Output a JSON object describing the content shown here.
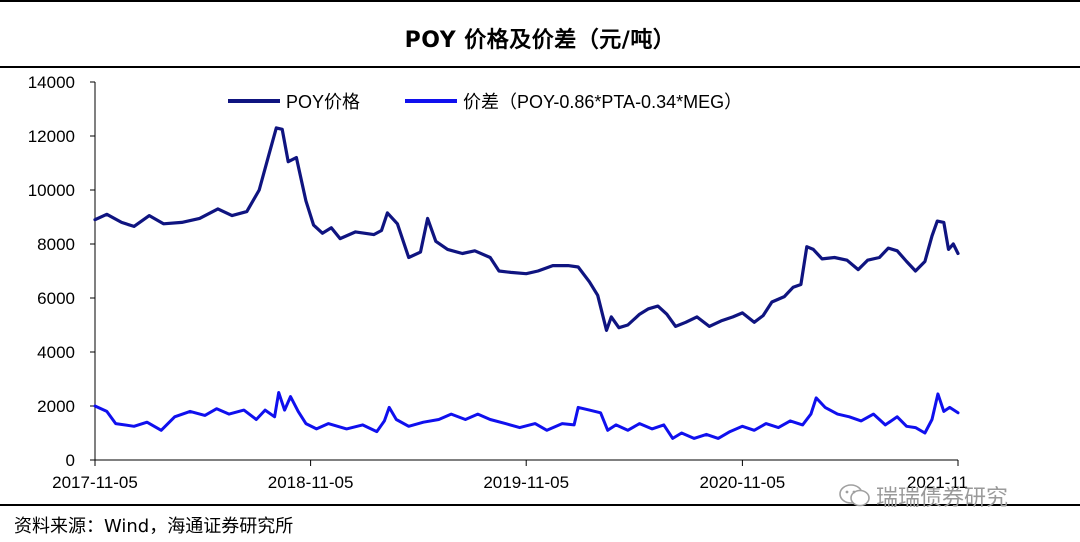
{
  "title": "POY 价格及价差（元/吨）",
  "source": "资料来源：Wind，海通证券研究所",
  "watermark": "瑞瑞债券研究",
  "colors": {
    "poy": "#0f1480",
    "spread": "#1010ee",
    "axis": "#000000"
  },
  "chart_data": {
    "type": "line",
    "title": "POY 价格及价差（元/吨）",
    "xlabel": "",
    "ylabel": "",
    "ylim": [
      0,
      14000
    ],
    "yticks": [
      0,
      2000,
      4000,
      6000,
      8000,
      10000,
      12000,
      14000
    ],
    "ytick_labels": [
      "0",
      "2000",
      "4000",
      "6000",
      "8000",
      "10000",
      "12000",
      "14000"
    ],
    "xlim": [
      "2017-11-05",
      "2021-11-05"
    ],
    "xticks": [
      "2017-11-05",
      "2018-11-05",
      "2019-11-05",
      "2020-11-05",
      "2021-11-05"
    ],
    "xtick_labels": [
      "2017-11-05",
      "2018-11-05",
      "2019-11-05",
      "2020-11-05",
      "2021-11"
    ],
    "legend_position": "top",
    "grid": false,
    "series": [
      {
        "name": "POY价格",
        "points": [
          [
            "2017-11-05",
            8900
          ],
          [
            "2017-11-25",
            9100
          ],
          [
            "2017-12-20",
            8800
          ],
          [
            "2018-01-10",
            8650
          ],
          [
            "2018-02-05",
            9050
          ],
          [
            "2018-03-01",
            8750
          ],
          [
            "2018-04-01",
            8800
          ],
          [
            "2018-05-01",
            8950
          ],
          [
            "2018-06-01",
            9300
          ],
          [
            "2018-06-25",
            9050
          ],
          [
            "2018-07-20",
            9200
          ],
          [
            "2018-08-10",
            10000
          ],
          [
            "2018-08-25",
            11200
          ],
          [
            "2018-09-08",
            12300
          ],
          [
            "2018-09-18",
            12250
          ],
          [
            "2018-09-28",
            11050
          ],
          [
            "2018-10-12",
            11200
          ],
          [
            "2018-10-28",
            9600
          ],
          [
            "2018-11-10",
            8700
          ],
          [
            "2018-11-25",
            8400
          ],
          [
            "2018-12-10",
            8600
          ],
          [
            "2018-12-25",
            8200
          ],
          [
            "2019-01-20",
            8450
          ],
          [
            "2019-02-20",
            8350
          ],
          [
            "2019-03-05",
            8500
          ],
          [
            "2019-03-15",
            9150
          ],
          [
            "2019-04-01",
            8750
          ],
          [
            "2019-04-20",
            7500
          ],
          [
            "2019-05-10",
            7700
          ],
          [
            "2019-05-22",
            8950
          ],
          [
            "2019-06-05",
            8100
          ],
          [
            "2019-06-25",
            7800
          ],
          [
            "2019-07-20",
            7650
          ],
          [
            "2019-08-10",
            7750
          ],
          [
            "2019-09-05",
            7500
          ],
          [
            "2019-09-20",
            7000
          ],
          [
            "2019-10-10",
            6950
          ],
          [
            "2019-11-05",
            6900
          ],
          [
            "2019-11-25",
            7000
          ],
          [
            "2019-12-20",
            7200
          ],
          [
            "2020-01-15",
            7200
          ],
          [
            "2020-02-01",
            7150
          ],
          [
            "2020-02-20",
            6600
          ],
          [
            "2020-03-05",
            6100
          ],
          [
            "2020-03-20",
            4800
          ],
          [
            "2020-03-28",
            5300
          ],
          [
            "2020-04-10",
            4900
          ],
          [
            "2020-04-25",
            5000
          ],
          [
            "2020-05-15",
            5400
          ],
          [
            "2020-05-30",
            5600
          ],
          [
            "2020-06-15",
            5700
          ],
          [
            "2020-06-30",
            5400
          ],
          [
            "2020-07-15",
            4950
          ],
          [
            "2020-08-01",
            5100
          ],
          [
            "2020-08-20",
            5300
          ],
          [
            "2020-09-10",
            4950
          ],
          [
            "2020-09-30",
            5150
          ],
          [
            "2020-10-20",
            5300
          ],
          [
            "2020-11-05",
            5450
          ],
          [
            "2020-11-25",
            5100
          ],
          [
            "2020-12-10",
            5350
          ],
          [
            "2020-12-25",
            5850
          ],
          [
            "2021-01-15",
            6050
          ],
          [
            "2021-01-30",
            6400
          ],
          [
            "2021-02-12",
            6500
          ],
          [
            "2021-02-22",
            7900
          ],
          [
            "2021-03-05",
            7800
          ],
          [
            "2021-03-20",
            7450
          ],
          [
            "2021-04-10",
            7500
          ],
          [
            "2021-05-01",
            7400
          ],
          [
            "2021-05-20",
            7050
          ],
          [
            "2021-06-05",
            7400
          ],
          [
            "2021-06-25",
            7500
          ],
          [
            "2021-07-10",
            7850
          ],
          [
            "2021-07-25",
            7750
          ],
          [
            "2021-08-10",
            7350
          ],
          [
            "2021-08-25",
            7000
          ],
          [
            "2021-09-10",
            7350
          ],
          [
            "2021-09-22",
            8300
          ],
          [
            "2021-10-01",
            8850
          ],
          [
            "2021-10-12",
            8800
          ],
          [
            "2021-10-20",
            7800
          ],
          [
            "2021-10-28",
            8000
          ],
          [
            "2021-11-05",
            7650
          ]
        ]
      },
      {
        "name": "价差（POY-0.86*PTA-0.34*MEG）",
        "points": [
          [
            "2017-11-05",
            2000
          ],
          [
            "2017-11-25",
            1800
          ],
          [
            "2017-12-10",
            1350
          ],
          [
            "2018-01-10",
            1250
          ],
          [
            "2018-02-01",
            1400
          ],
          [
            "2018-02-25",
            1100
          ],
          [
            "2018-03-20",
            1600
          ],
          [
            "2018-04-15",
            1800
          ],
          [
            "2018-05-10",
            1650
          ],
          [
            "2018-05-30",
            1900
          ],
          [
            "2018-06-20",
            1700
          ],
          [
            "2018-07-15",
            1850
          ],
          [
            "2018-08-05",
            1500
          ],
          [
            "2018-08-20",
            1850
          ],
          [
            "2018-09-05",
            1600
          ],
          [
            "2018-09-12",
            2500
          ],
          [
            "2018-09-22",
            1850
          ],
          [
            "2018-10-02",
            2350
          ],
          [
            "2018-10-15",
            1800
          ],
          [
            "2018-10-28",
            1350
          ],
          [
            "2018-11-15",
            1150
          ],
          [
            "2018-12-05",
            1350
          ],
          [
            "2019-01-05",
            1150
          ],
          [
            "2019-02-01",
            1300
          ],
          [
            "2019-02-25",
            1050
          ],
          [
            "2019-03-10",
            1450
          ],
          [
            "2019-03-18",
            1950
          ],
          [
            "2019-03-30",
            1500
          ],
          [
            "2019-04-20",
            1250
          ],
          [
            "2019-05-15",
            1400
          ],
          [
            "2019-06-10",
            1500
          ],
          [
            "2019-07-01",
            1700
          ],
          [
            "2019-07-25",
            1500
          ],
          [
            "2019-08-15",
            1700
          ],
          [
            "2019-09-05",
            1500
          ],
          [
            "2019-10-01",
            1350
          ],
          [
            "2019-10-25",
            1200
          ],
          [
            "2019-11-20",
            1350
          ],
          [
            "2019-12-10",
            1100
          ],
          [
            "2020-01-05",
            1350
          ],
          [
            "2020-01-25",
            1300
          ],
          [
            "2020-02-01",
            1950
          ],
          [
            "2020-02-20",
            1850
          ],
          [
            "2020-03-10",
            1750
          ],
          [
            "2020-03-22",
            1100
          ],
          [
            "2020-04-05",
            1300
          ],
          [
            "2020-04-25",
            1100
          ],
          [
            "2020-05-15",
            1350
          ],
          [
            "2020-06-05",
            1150
          ],
          [
            "2020-06-25",
            1300
          ],
          [
            "2020-07-10",
            800
          ],
          [
            "2020-07-25",
            1000
          ],
          [
            "2020-08-15",
            800
          ],
          [
            "2020-09-05",
            950
          ],
          [
            "2020-09-25",
            800
          ],
          [
            "2020-10-15",
            1050
          ],
          [
            "2020-11-05",
            1250
          ],
          [
            "2020-11-25",
            1100
          ],
          [
            "2020-12-15",
            1350
          ],
          [
            "2021-01-05",
            1200
          ],
          [
            "2021-01-25",
            1450
          ],
          [
            "2021-02-15",
            1300
          ],
          [
            "2021-03-01",
            1700
          ],
          [
            "2021-03-10",
            2300
          ],
          [
            "2021-03-25",
            1950
          ],
          [
            "2021-04-15",
            1700
          ],
          [
            "2021-05-05",
            1600
          ],
          [
            "2021-05-25",
            1450
          ],
          [
            "2021-06-15",
            1700
          ],
          [
            "2021-07-05",
            1300
          ],
          [
            "2021-07-25",
            1600
          ],
          [
            "2021-08-10",
            1250
          ],
          [
            "2021-08-25",
            1200
          ],
          [
            "2021-09-10",
            1000
          ],
          [
            "2021-09-22",
            1500
          ],
          [
            "2021-10-02",
            2450
          ],
          [
            "2021-10-12",
            1800
          ],
          [
            "2021-10-22",
            1950
          ],
          [
            "2021-11-05",
            1750
          ]
        ]
      }
    ]
  }
}
